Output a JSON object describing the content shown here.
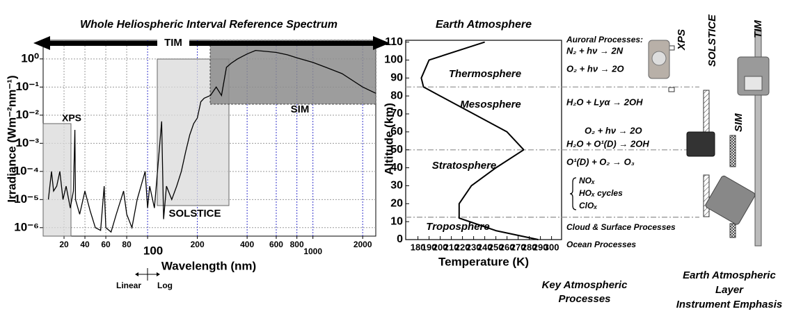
{
  "chart_data": [
    {
      "type": "line",
      "title": "Whole Heliospheric Interval Reference Spectrum",
      "xlabel": "Wavelength (nm)",
      "ylabel": "Irradiance (Wm⁻²nm⁻¹)",
      "xscale": "linear-log",
      "xbreak": 100,
      "ylog": true,
      "grid": true,
      "color": "#000000",
      "x": [
        5,
        8,
        10,
        13,
        16,
        19,
        22,
        26,
        29,
        30.4,
        31,
        35,
        40,
        45,
        50,
        55,
        58.4,
        60,
        65,
        70,
        77,
        80,
        85,
        90,
        97.7,
        100,
        103,
        110,
        121.6,
        125,
        130,
        140,
        150,
        160,
        170,
        180,
        190,
        200,
        210,
        220,
        240,
        260,
        280,
        300,
        320,
        350,
        400,
        450,
        500,
        600,
        700,
        800,
        1000,
        1200,
        1500,
        2000,
        2400
      ],
      "values": [
        1e-05,
        0.0001,
        2e-05,
        3e-05,
        0.0001,
        1e-05,
        3e-05,
        5e-06,
        2e-05,
        0.003,
        1e-05,
        3e-06,
        2e-05,
        4e-06,
        1e-06,
        8e-07,
        3e-05,
        1e-06,
        7e-07,
        3e-06,
        2e-05,
        3e-06,
        1e-06,
        1e-05,
        0.0001,
        5e-06,
        3e-05,
        5e-06,
        0.006,
        2e-06,
        3e-05,
        1e-05,
        3e-05,
        0.0001,
        0.0005,
        0.002,
        0.005,
        0.008,
        0.03,
        0.04,
        0.05,
        0.1,
        0.05,
        0.5,
        0.7,
        1.0,
        1.5,
        2.0,
        1.9,
        1.7,
        1.4,
        1.1,
        0.75,
        0.5,
        0.3,
        0.1,
        0.06
      ],
      "xlim": [
        0,
        2400
      ],
      "ylim": [
        5e-07,
        4.6
      ],
      "xticks": [
        20,
        40,
        60,
        80,
        100,
        200,
        400,
        600,
        800,
        1000,
        2000
      ],
      "yticks": [
        {
          "value": 1e-06,
          "label": "10⁻⁶"
        },
        {
          "value": 1e-05,
          "label": "10⁻⁵"
        },
        {
          "value": 0.0001,
          "label": "10⁻⁴"
        },
        {
          "value": 0.001,
          "label": "10⁻³"
        },
        {
          "value": 0.01,
          "label": "10⁻²"
        },
        {
          "value": 0.1,
          "label": "10⁻¹"
        },
        {
          "value": 1,
          "label": "10⁰"
        }
      ],
      "instrument_labels": [
        "XPS",
        "SOLSTICE",
        "SIM",
        "TIM"
      ],
      "scale_labels": [
        "Linear",
        "Log"
      ]
    },
    {
      "type": "line",
      "title": "Earth Atmosphere",
      "xlabel": "Temperature (K)",
      "ylabel": "Altitude (km)",
      "color": "#000000",
      "x": [
        288,
        250,
        217,
        217,
        228,
        250,
        275,
        260,
        230,
        200,
        185,
        183,
        190,
        240
      ],
      "values": [
        0,
        5,
        12,
        20,
        30,
        40,
        50,
        60,
        70,
        80,
        85,
        90,
        100,
        110
      ],
      "xlim": [
        169,
        309
      ],
      "ylim": [
        0,
        111
      ],
      "xticks": [
        180,
        190,
        200,
        210,
        220,
        230,
        240,
        250,
        260,
        270,
        280,
        290,
        300
      ],
      "yticks": [
        0,
        10,
        20,
        30,
        40,
        50,
        60,
        70,
        80,
        90,
        100,
        110
      ],
      "boundaries": [
        12.5,
        50,
        85
      ],
      "layers": [
        "Thermosphere",
        "Mesosphere",
        "Stratosphere",
        "Troposphere"
      ]
    }
  ],
  "processes": {
    "items": [
      "Auroral Processes:",
      "N₂ + hν → 2N",
      "O₂ + hν → 2O",
      "H₂O + Lyα → 2OH",
      "O₂ + hν → 2O",
      "H₂O + O¹(D) → 2OH",
      "O¹(D) + O₂ → O₃",
      "NOₓ",
      "HOₓ cycles",
      "ClOₓ",
      "Cloud & Surface Processes",
      "Ocean Processes"
    ],
    "title": [
      "Key Atmospheric",
      "Processes"
    ]
  },
  "instruments": {
    "labels": [
      "XPS",
      "SOLSTICE",
      "SIM",
      "TIM"
    ],
    "title": [
      "Earth Atmospheric",
      "Layer",
      "Instrument Emphasis"
    ]
  }
}
